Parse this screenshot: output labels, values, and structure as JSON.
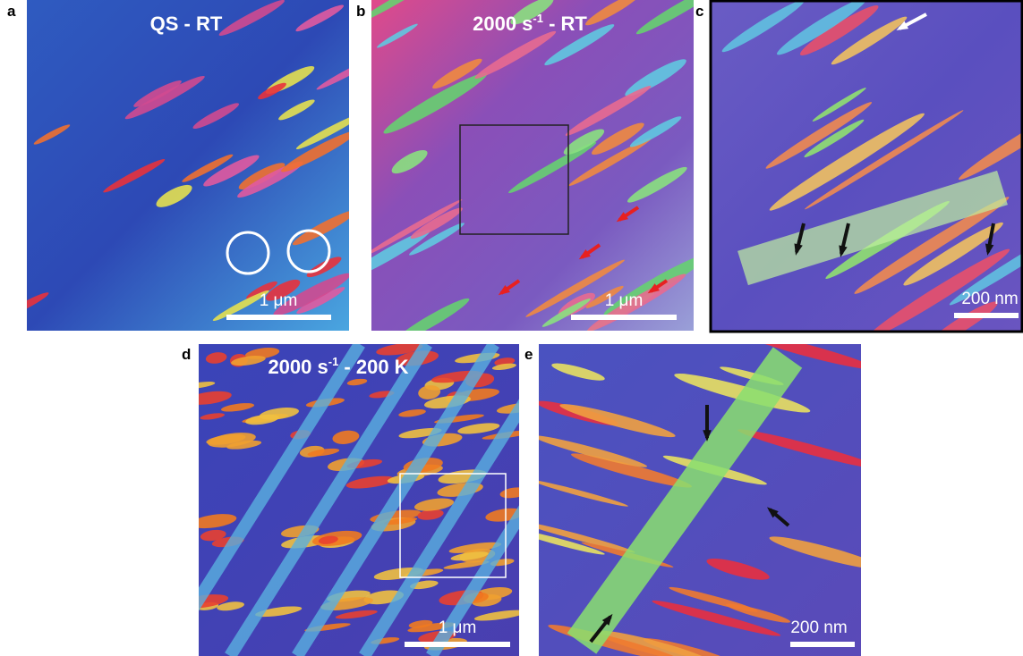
{
  "panels": [
    {
      "letter": "a",
      "title": {
        "text": "QS - RT"
      },
      "scale_bar": "1 μm"
    },
    {
      "letter": "b",
      "title": {
        "base": "2000 s",
        "sup": "-1",
        "rest": " - RT"
      },
      "scale_bar": "1 μm"
    },
    {
      "letter": "c",
      "scale_bar": "200 nm"
    },
    {
      "letter": "d",
      "title": {
        "base": "2000 s",
        "sup": "-1",
        "rest": " - 200 K"
      },
      "scale_bar": "1 μm"
    },
    {
      "letter": "e",
      "scale_bar": "200 nm"
    }
  ]
}
